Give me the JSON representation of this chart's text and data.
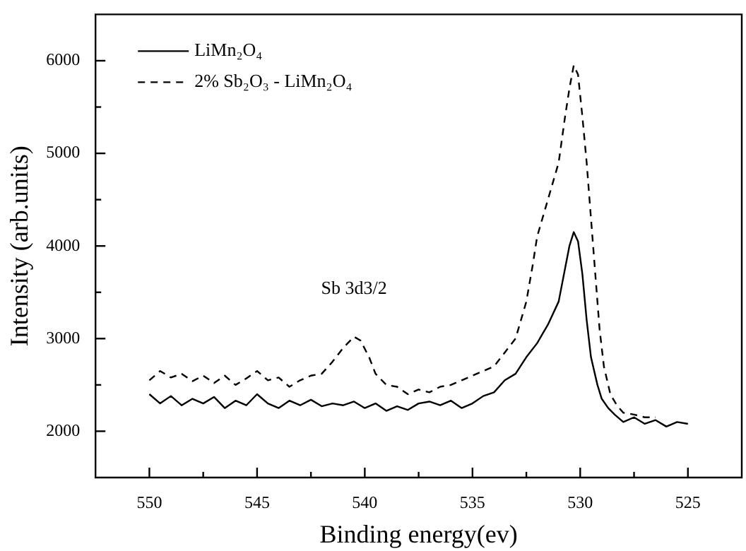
{
  "chart_data": {
    "type": "line",
    "xlabel": "Binding energy(ev)",
    "ylabel": "Intensity (arb.units)",
    "xlim": [
      552.5,
      522.5
    ],
    "ylim": [
      1500,
      6500
    ],
    "xticks": [
      550,
      {
        "value": 547.5,
        "label": null
      },
      545,
      {
        "value": 542.5,
        "label": null
      },
      540,
      {
        "value": 537.5,
        "label": null
      },
      535,
      {
        "value": 532.5,
        "label": null
      },
      530,
      {
        "value": 527.5,
        "label": null
      },
      525
    ],
    "yticks": [
      2000,
      {
        "value": 2500,
        "label": null
      },
      3000,
      {
        "value": 3500,
        "label": null
      },
      4000,
      {
        "value": 4500,
        "label": null
      },
      5000,
      {
        "value": 5500,
        "label": null
      },
      6000
    ],
    "legend": "top left",
    "grid": false,
    "marker": "none",
    "annotations": [
      {
        "text": "Sb 3d3/2",
        "x": 540.5,
        "y": 3020
      }
    ],
    "series": [
      {
        "name": "LiMn₂O₄",
        "color": "#000000",
        "line_style": "solid",
        "x": [
          550,
          549.5,
          549,
          548.5,
          548,
          547.5,
          547,
          546.5,
          546,
          545.5,
          545,
          544.5,
          544,
          543.5,
          543,
          542.5,
          542,
          541.5,
          541,
          540.5,
          540,
          539.5,
          539,
          538.5,
          538,
          537.5,
          537,
          536.5,
          536,
          535.5,
          535,
          534.5,
          534,
          533.5,
          533,
          532.5,
          532,
          531.5,
          531,
          530.75,
          530.5,
          530.3,
          530.1,
          529.9,
          529.7,
          529.5,
          529.2,
          529,
          528.7,
          528.4,
          528,
          527.5,
          527,
          526.5,
          526,
          525.5,
          525
        ],
        "values": [
          2400,
          2300,
          2380,
          2280,
          2350,
          2300,
          2370,
          2250,
          2330,
          2280,
          2400,
          2300,
          2250,
          2330,
          2280,
          2340,
          2270,
          2300,
          2280,
          2320,
          2250,
          2300,
          2220,
          2270,
          2230,
          2300,
          2320,
          2280,
          2330,
          2250,
          2300,
          2380,
          2420,
          2550,
          2620,
          2800,
          2950,
          3150,
          3400,
          3700,
          4000,
          4150,
          4050,
          3700,
          3200,
          2800,
          2500,
          2350,
          2250,
          2180,
          2100,
          2150,
          2080,
          2120,
          2050,
          2100,
          2080
        ]
      },
      {
        "name": "2% Sb₂O₃ - LiMn₂O₄",
        "color": "#000000",
        "line_style": "dashed",
        "x": [
          550,
          549.5,
          549,
          548.5,
          548,
          547.5,
          547,
          546.5,
          546,
          545.5,
          545,
          544.5,
          544,
          543.5,
          543,
          542.5,
          542,
          541.5,
          541,
          540.5,
          540.2,
          539.8,
          539.5,
          539,
          538.5,
          538,
          537.5,
          537,
          536.5,
          536,
          535.5,
          535,
          534.5,
          534,
          533.5,
          533,
          532.5,
          532.2,
          532,
          531.5,
          531,
          530.7,
          530.5,
          530.3,
          530.1,
          529.9,
          529.7,
          529.5,
          529.3,
          529.1,
          528.9,
          528.6,
          528.3,
          528,
          527.5,
          527,
          526.5
        ],
        "values": [
          2550,
          2650,
          2580,
          2620,
          2540,
          2600,
          2520,
          2600,
          2500,
          2570,
          2650,
          2550,
          2580,
          2480,
          2550,
          2600,
          2620,
          2750,
          2900,
          3020,
          2980,
          2800,
          2620,
          2500,
          2480,
          2400,
          2450,
          2420,
          2480,
          2500,
          2550,
          2600,
          2650,
          2700,
          2850,
          3000,
          3400,
          3800,
          4100,
          4500,
          4900,
          5400,
          5700,
          5950,
          5850,
          5400,
          4900,
          4300,
          3700,
          3100,
          2700,
          2400,
          2280,
          2200,
          2180,
          2150,
          2150
        ]
      }
    ]
  }
}
